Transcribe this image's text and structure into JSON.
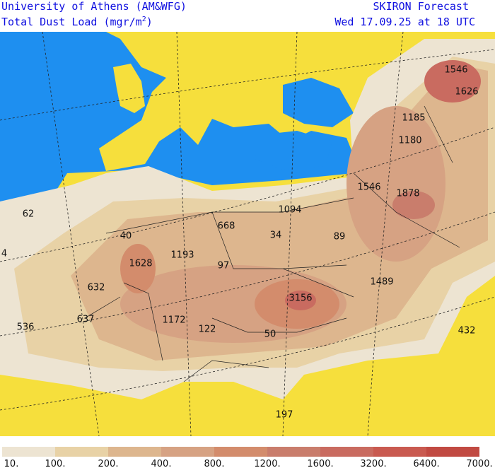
{
  "header": {
    "left_title": "University of Athens (AM&WFG)",
    "left_subtitle": "Total Dust Load (mgr/m",
    "left_subtitle_sup": "2",
    "left_subtitle_end": ")",
    "right_title": "SKIRON Forecast",
    "right_subtitle": "Wed 17.09.25 at 18 UTC"
  },
  "map_labels": [
    "1546",
    "1626",
    "1185",
    "1180",
    "1546",
    "1878",
    "62",
    "4",
    "40",
    "668",
    "1094",
    "34",
    "89",
    "1193",
    "97",
    "1628",
    "632",
    "1489",
    "3156",
    "637",
    "1172",
    "122",
    "536",
    "50",
    "432",
    "197"
  ],
  "legend": {
    "labels": [
      "10.",
      "100.",
      "200.",
      "400.",
      "800.",
      "1200.",
      "1600.",
      "3200.",
      "6400.",
      "7000."
    ],
    "colors": [
      "#ede4d2",
      "#e8d2a6",
      "#ddb68e",
      "#d6a283",
      "#d38c6c",
      "#c97d6c",
      "#c96b60",
      "#c95a50",
      "#c14a42"
    ]
  }
}
